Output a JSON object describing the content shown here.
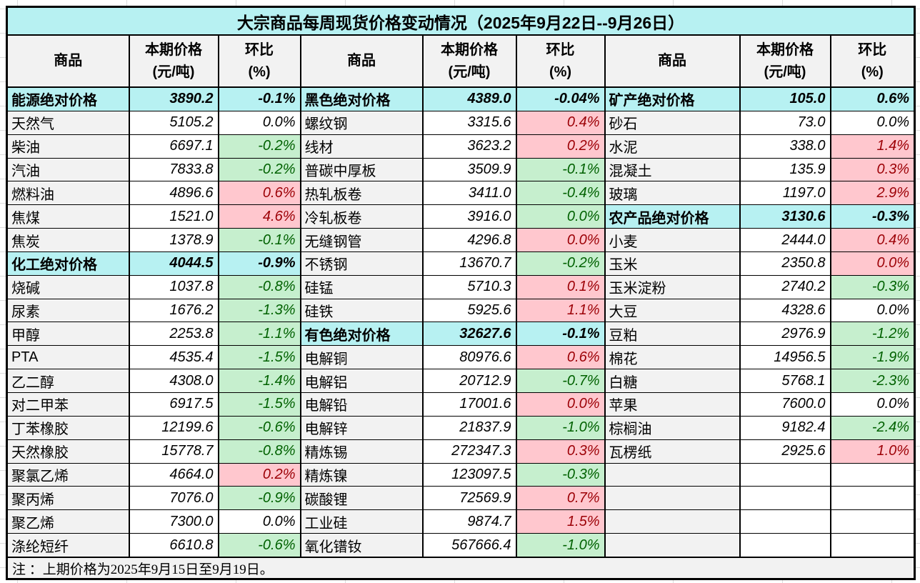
{
  "title": "大宗商品每周现货价格变动情况（2025年9月22日--9月26日）",
  "header": {
    "commodity": "商品",
    "price": "本期价格",
    "price_unit": "(元/吨)",
    "pct": "环比",
    "pct_unit": "(%)"
  },
  "note": "注 ：上期价格为2025年9月15日至9月19日。",
  "colors": {
    "section_bg": "#b7f1f2",
    "header_bg": "#f2f2f2",
    "name_bg": "#f2f2f2",
    "up_bg": "#ffc7ce",
    "up_text": "#9c0006",
    "down_bg": "#c6efce",
    "down_text": "#006100"
  },
  "groups": [
    {
      "rows": [
        {
          "kind": "section",
          "name": "能源绝对价格",
          "price": "3890.2",
          "pct": "-0.1%"
        },
        {
          "kind": "item",
          "trend": "flat",
          "name": "天然气",
          "price": "5105.2",
          "pct": "0.0%"
        },
        {
          "kind": "item",
          "trend": "down",
          "name": "柴油",
          "price": "6697.1",
          "pct": "-0.2%"
        },
        {
          "kind": "item",
          "trend": "down",
          "name": "汽油",
          "price": "7833.8",
          "pct": "-0.2%"
        },
        {
          "kind": "item",
          "trend": "up",
          "name": "燃料油",
          "price": "4896.6",
          "pct": "0.6%"
        },
        {
          "kind": "item",
          "trend": "up",
          "name": "焦煤",
          "price": "1521.0",
          "pct": "4.6%"
        },
        {
          "kind": "item",
          "trend": "down",
          "name": "焦炭",
          "price": "1378.9",
          "pct": "-0.1%"
        },
        {
          "kind": "section",
          "name": "化工绝对价格",
          "price": "4044.5",
          "pct": "-0.9%"
        },
        {
          "kind": "item",
          "trend": "down",
          "name": "烧碱",
          "price": "1037.8",
          "pct": "-0.8%"
        },
        {
          "kind": "item",
          "trend": "down",
          "name": "尿素",
          "price": "1676.2",
          "pct": "-1.3%"
        },
        {
          "kind": "item",
          "trend": "down",
          "name": "甲醇",
          "price": "2253.8",
          "pct": "-1.1%"
        },
        {
          "kind": "item",
          "trend": "down",
          "name": "PTA",
          "price": "4535.4",
          "pct": "-1.5%"
        },
        {
          "kind": "item",
          "trend": "down",
          "name": "乙二醇",
          "price": "4308.0",
          "pct": "-1.4%"
        },
        {
          "kind": "item",
          "trend": "down",
          "name": "对二甲苯",
          "price": "6917.5",
          "pct": "-1.5%"
        },
        {
          "kind": "item",
          "trend": "down",
          "name": "丁苯橡胶",
          "price": "12199.6",
          "pct": "-0.6%"
        },
        {
          "kind": "item",
          "trend": "down",
          "name": "天然橡胶",
          "price": "15778.7",
          "pct": "-0.8%"
        },
        {
          "kind": "item",
          "trend": "up",
          "name": "聚氯乙烯",
          "price": "4664.0",
          "pct": "0.2%"
        },
        {
          "kind": "item",
          "trend": "down",
          "name": "聚丙烯",
          "price": "7076.0",
          "pct": "-0.9%"
        },
        {
          "kind": "item",
          "trend": "flat",
          "name": "聚乙烯",
          "price": "7300.0",
          "pct": "0.0%"
        },
        {
          "kind": "item",
          "trend": "down",
          "name": "涤纶短纤",
          "price": "6610.8",
          "pct": "-0.6%"
        }
      ]
    },
    {
      "rows": [
        {
          "kind": "section",
          "name": "黑色绝对价格",
          "price": "4389.0",
          "pct": "-0.04%"
        },
        {
          "kind": "item",
          "trend": "up",
          "name": "螺纹钢",
          "price": "3315.6",
          "pct": "0.4%"
        },
        {
          "kind": "item",
          "trend": "up",
          "name": "线材",
          "price": "3623.2",
          "pct": "0.2%"
        },
        {
          "kind": "item",
          "trend": "down",
          "name": "普碳中厚板",
          "price": "3509.9",
          "pct": "-0.1%"
        },
        {
          "kind": "item",
          "trend": "down",
          "name": "热轧板卷",
          "price": "3411.0",
          "pct": "-0.4%"
        },
        {
          "kind": "item",
          "trend": "down",
          "name": "冷轧板卷",
          "price": "3916.0",
          "pct": "0.0%"
        },
        {
          "kind": "item",
          "trend": "up",
          "name": "无缝钢管",
          "price": "4296.8",
          "pct": "0.0%"
        },
        {
          "kind": "item",
          "trend": "down",
          "name": "不锈钢",
          "price": "13670.7",
          "pct": "-0.2%"
        },
        {
          "kind": "item",
          "trend": "up",
          "name": "硅锰",
          "price": "5710.3",
          "pct": "0.1%"
        },
        {
          "kind": "item",
          "trend": "up",
          "name": "硅铁",
          "price": "5925.6",
          "pct": "1.1%"
        },
        {
          "kind": "section",
          "name": "有色绝对价格",
          "price": "32627.6",
          "pct": "-0.1%"
        },
        {
          "kind": "item",
          "trend": "up",
          "name": "电解铜",
          "price": "80976.6",
          "pct": "0.6%"
        },
        {
          "kind": "item",
          "trend": "down",
          "name": "电解铝",
          "price": "20712.9",
          "pct": "-0.7%"
        },
        {
          "kind": "item",
          "trend": "up",
          "name": "电解铅",
          "price": "17001.6",
          "pct": "0.0%"
        },
        {
          "kind": "item",
          "trend": "down",
          "name": "电解锌",
          "price": "21837.9",
          "pct": "-1.0%"
        },
        {
          "kind": "item",
          "trend": "up",
          "name": "精炼锡",
          "price": "272347.3",
          "pct": "0.3%"
        },
        {
          "kind": "item",
          "trend": "down",
          "name": "精炼镍",
          "price": "123097.5",
          "pct": "-0.3%"
        },
        {
          "kind": "item",
          "trend": "up",
          "name": "碳酸锂",
          "price": "72569.9",
          "pct": "0.7%"
        },
        {
          "kind": "item",
          "trend": "up",
          "name": "工业硅",
          "price": "9874.7",
          "pct": "1.5%"
        },
        {
          "kind": "item",
          "trend": "down",
          "name": "氧化镨钕",
          "price": "567666.4",
          "pct": "-1.0%"
        }
      ]
    },
    {
      "rows": [
        {
          "kind": "section",
          "name": "矿产绝对价格",
          "price": "105.0",
          "pct": "0.6%"
        },
        {
          "kind": "item",
          "trend": "flat",
          "name": "砂石",
          "price": "73.0",
          "pct": "0.0%"
        },
        {
          "kind": "item",
          "trend": "up",
          "name": "水泥",
          "price": "338.0",
          "pct": "1.4%"
        },
        {
          "kind": "item",
          "trend": "up",
          "name": "混凝土",
          "price": "135.9",
          "pct": "0.3%"
        },
        {
          "kind": "item",
          "trend": "up",
          "name": "玻璃",
          "price": "1197.0",
          "pct": "2.9%"
        },
        {
          "kind": "section",
          "name": "农产品绝对价格",
          "price": "3130.6",
          "pct": "-0.3%"
        },
        {
          "kind": "item",
          "trend": "up",
          "name": "小麦",
          "price": "2444.0",
          "pct": "0.4%"
        },
        {
          "kind": "item",
          "trend": "up",
          "name": "玉米",
          "price": "2350.8",
          "pct": "0.0%"
        },
        {
          "kind": "item",
          "trend": "down",
          "name": "玉米淀粉",
          "price": "2740.2",
          "pct": "-0.3%"
        },
        {
          "kind": "item",
          "trend": "flat",
          "name": "大豆",
          "price": "4328.6",
          "pct": "0.0%"
        },
        {
          "kind": "item",
          "trend": "down",
          "name": "豆粕",
          "price": "2976.9",
          "pct": "-1.2%"
        },
        {
          "kind": "item",
          "trend": "down",
          "name": "棉花",
          "price": "14956.5",
          "pct": "-1.9%"
        },
        {
          "kind": "item",
          "trend": "down",
          "name": "白糖",
          "price": "5768.1",
          "pct": "-2.3%"
        },
        {
          "kind": "item",
          "trend": "flat",
          "name": "苹果",
          "price": "7600.0",
          "pct": "0.0%"
        },
        {
          "kind": "item",
          "trend": "down",
          "name": "棕榈油",
          "price": "9182.4",
          "pct": "-2.4%"
        },
        {
          "kind": "item",
          "trend": "up",
          "name": "瓦楞纸",
          "price": "2925.6",
          "pct": "1.0%"
        },
        {
          "kind": "empty",
          "name": "",
          "price": "",
          "pct": ""
        },
        {
          "kind": "empty",
          "name": "",
          "price": "",
          "pct": ""
        },
        {
          "kind": "empty",
          "name": "",
          "price": "",
          "pct": ""
        },
        {
          "kind": "empty",
          "name": "",
          "price": "",
          "pct": ""
        }
      ]
    }
  ]
}
